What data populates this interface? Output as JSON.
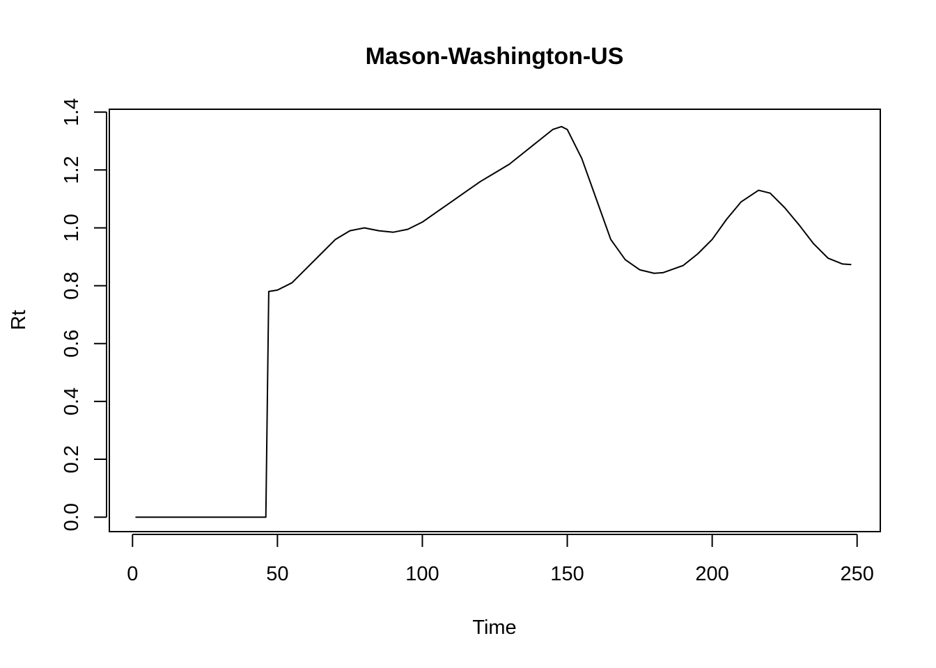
{
  "chart_data": {
    "type": "line",
    "title": "Mason-Washington-US",
    "xlabel": "Time",
    "ylabel": "Rt",
    "xlim": [
      -8,
      258
    ],
    "ylim": [
      -0.05,
      1.41
    ],
    "x_ticks": [
      0,
      50,
      100,
      150,
      200,
      250
    ],
    "x_tick_labels": [
      "0",
      "50",
      "100",
      "150",
      "200",
      "250"
    ],
    "y_ticks": [
      0.0,
      0.2,
      0.4,
      0.6,
      0.8,
      1.0,
      1.2,
      1.4
    ],
    "y_tick_labels": [
      "0.0",
      "0.2",
      "0.4",
      "0.6",
      "0.8",
      "1.0",
      "1.2",
      "1.4"
    ],
    "grid": false,
    "legend": "none",
    "line_color": "#000000",
    "series": [
      {
        "x": [
          1,
          10,
          20,
          30,
          40,
          46,
          47,
          50,
          55,
          60,
          65,
          70,
          75,
          80,
          85,
          90,
          95,
          100,
          105,
          110,
          115,
          120,
          125,
          130,
          135,
          140,
          145,
          148,
          150,
          155,
          160,
          165,
          170,
          175,
          180,
          183,
          190,
          195,
          200,
          205,
          210,
          216,
          220,
          225,
          230,
          235,
          240,
          245,
          248
        ],
        "y": [
          0.0,
          0.0,
          0.0,
          0.0,
          0.0,
          0.0,
          0.78,
          0.785,
          0.81,
          0.86,
          0.91,
          0.96,
          0.99,
          1.0,
          0.99,
          0.985,
          0.995,
          1.02,
          1.055,
          1.09,
          1.125,
          1.16,
          1.19,
          1.22,
          1.26,
          1.3,
          1.34,
          1.35,
          1.34,
          1.24,
          1.1,
          0.96,
          0.89,
          0.855,
          0.843,
          0.845,
          0.87,
          0.91,
          0.96,
          1.03,
          1.09,
          1.13,
          1.12,
          1.07,
          1.01,
          0.945,
          0.895,
          0.875,
          0.873
        ]
      }
    ]
  }
}
